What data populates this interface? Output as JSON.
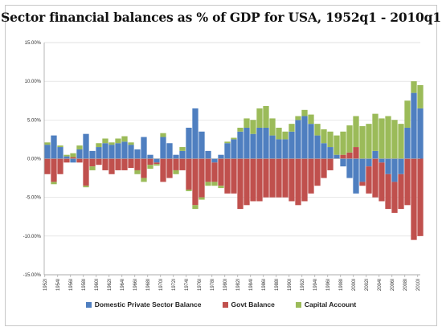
{
  "colors": {
    "domestic": "#4f7fc0",
    "govt": "#c0504d",
    "capital": "#9bbb59"
  },
  "chart_data": {
    "type": "bar",
    "stacked": true,
    "title": "Sector financial balances as % of GDP for USA, 1952q1 - 2010q1",
    "xlabel": "",
    "ylabel": "",
    "ylim": [
      -15,
      15
    ],
    "grid": true,
    "legend_position": "bottom",
    "y_ticks": [
      "15.00%",
      "10.00%",
      "5.00%",
      "0.00%",
      "-5.00%",
      "-10.00%",
      "-15.00%"
    ],
    "y_tick_values": [
      15,
      10,
      5,
      0,
      -5,
      -10,
      -15
    ],
    "x_tick_labels": [
      "1952I",
      "1954I",
      "1956I",
      "1958I",
      "1960I",
      "1962I",
      "1964I",
      "1966I",
      "1968I",
      "1970I",
      "1972I",
      "1974I",
      "1976I",
      "1978I",
      "1980I",
      "1982I",
      "1984I",
      "1986I",
      "1988I",
      "1990I",
      "1992I",
      "1994I",
      "1996I",
      "1998I",
      "2000I",
      "2002I",
      "2004I",
      "2006I",
      "2008I",
      "2010I"
    ],
    "x_tick_years": [
      1952,
      1954,
      1956,
      1958,
      1960,
      1962,
      1964,
      1966,
      1968,
      1970,
      1972,
      1974,
      1976,
      1978,
      1980,
      1982,
      1984,
      1986,
      1988,
      1990,
      1992,
      1994,
      1996,
      1998,
      2000,
      2002,
      2004,
      2006,
      2008,
      2010
    ],
    "x": [
      1952,
      1953,
      1954,
      1955,
      1956,
      1957,
      1958,
      1959,
      1960,
      1961,
      1962,
      1963,
      1964,
      1965,
      1966,
      1967,
      1968,
      1969,
      1970,
      1971,
      1972,
      1973,
      1974,
      1975,
      1976,
      1977,
      1978,
      1979,
      1980,
      1981,
      1982,
      1983,
      1984,
      1985,
      1986,
      1987,
      1988,
      1989,
      1990,
      1991,
      1992,
      1993,
      1994,
      1995,
      1996,
      1997,
      1998,
      1999,
      2000,
      2001,
      2002,
      2003,
      2004,
      2005,
      2006,
      2007,
      2008,
      2009,
      2010
    ],
    "series": [
      {
        "name": "Domestic Private Sector Balance",
        "values": [
          1.8,
          3.0,
          1.5,
          0.3,
          -0.5,
          1.2,
          3.2,
          1.0,
          1.5,
          2.0,
          1.8,
          2.0,
          2.2,
          1.8,
          1.2,
          2.8,
          0.5,
          -0.5,
          2.8,
          2.0,
          0.5,
          1.0,
          4.0,
          6.5,
          3.5,
          1.0,
          -0.5,
          0.5,
          2.0,
          2.5,
          3.5,
          4.0,
          3.2,
          4.0,
          4.0,
          3.0,
          2.5,
          2.5,
          3.5,
          5.0,
          5.5,
          4.5,
          3.0,
          2.0,
          1.5,
          0.5,
          -1.0,
          -2.5,
          -4.5,
          -3.0,
          -1.0,
          1.0,
          -0.5,
          -2.0,
          -3.0,
          -2.0,
          4.0,
          8.5,
          6.5
        ]
      },
      {
        "name": "Govt Balance",
        "values": [
          -2.0,
          -3.0,
          -2.0,
          -0.5,
          0.2,
          -0.5,
          -3.5,
          -1.0,
          -0.8,
          -1.5,
          -2.0,
          -1.5,
          -1.5,
          -1.2,
          -1.5,
          -2.5,
          -0.8,
          -0.2,
          -3.0,
          -2.5,
          -1.5,
          -1.5,
          -4.0,
          -6.0,
          -5.0,
          -3.0,
          -2.5,
          -3.5,
          -4.5,
          -4.5,
          -6.5,
          -6.0,
          -5.5,
          -5.5,
          -5.0,
          -5.0,
          -5.0,
          -5.0,
          -5.5,
          -6.0,
          -5.5,
          -4.5,
          -3.5,
          -2.5,
          -1.5,
          0.0,
          0.5,
          0.8,
          1.5,
          -0.5,
          -3.5,
          -5.0,
          -5.0,
          -4.5,
          -4.0,
          -4.5,
          -6.0,
          -10.5,
          -10.0
        ]
      },
      {
        "name": "Capital Account",
        "values": [
          0.3,
          -0.3,
          0.2,
          0.2,
          0.5,
          0.5,
          -0.2,
          -0.5,
          0.5,
          0.6,
          0.3,
          0.6,
          0.7,
          0.3,
          -0.5,
          -0.5,
          -0.5,
          -0.2,
          0.5,
          0.0,
          -0.5,
          0.5,
          -0.2,
          -0.5,
          -0.3,
          -0.5,
          -0.5,
          -0.3,
          0.2,
          0.2,
          0.5,
          1.2,
          1.8,
          2.5,
          2.8,
          2.2,
          1.5,
          1.0,
          1.0,
          0.5,
          0.8,
          1.2,
          1.5,
          1.8,
          2.0,
          2.5,
          3.0,
          3.5,
          4.0,
          4.2,
          4.5,
          4.8,
          5.2,
          5.5,
          5.0,
          4.5,
          3.5,
          1.5,
          3.0
        ]
      }
    ]
  }
}
